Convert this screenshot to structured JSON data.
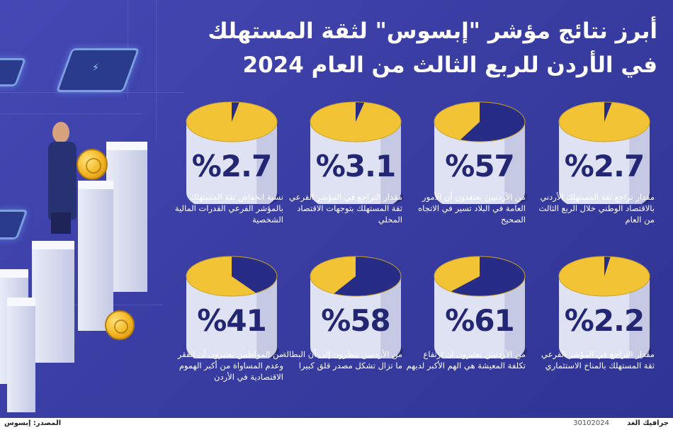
{
  "title": {
    "line1": "أبرز نتائج مؤشر \"إبسوس\" لثقة المستهلك",
    "line2": "في الأردن للربع الثالث من العام 2024"
  },
  "colors": {
    "background": "#3b3fa6",
    "pie_navy": "#272c86",
    "pie_gold": "#f2c335",
    "cylinder_body": "#dfe2f2",
    "percent_text": "#232773"
  },
  "stats": [
    {
      "value": "%2.7",
      "fraction": 0.027,
      "desc": "مقدار تراجع ثقة المستهلك الأردني بالاقتصاد الوطني خلال الربع الثالث من العام"
    },
    {
      "value": "%57",
      "fraction": 0.57,
      "desc": "من الأردنيين يعتقدون أن الأمور العامة في البلاد تسير في الاتجاه الصحيح"
    },
    {
      "value": "%3.1",
      "fraction": 0.031,
      "desc": "مقدار التراجع في المؤشر الفرعي ثقة المستهلك بتوجهات الاقتصاد المحلي"
    },
    {
      "value": "%2.7",
      "fraction": 0.027,
      "desc": "نسبة انخفاض ثقة المستهلك بالمؤشر الفرعي القدرات المالية الشخصية"
    },
    {
      "value": "%2.2",
      "fraction": 0.022,
      "desc": "مقدار التراجع في المؤشر الفرعي ثقة المستهلك بالمناخ الاستثماري"
    },
    {
      "value": "%61",
      "fraction": 0.61,
      "desc": "من الأردنيين يعتبرون ان ارتفاع تكلفة المعيشة هي الهم الأكبر لديهم"
    },
    {
      "value": "%58",
      "fraction": 0.58,
      "desc": "من الأردنيين ينظرون إلى أن البطالة ما تزال تشكل مصدر قلق كبيرا"
    },
    {
      "value": "%41",
      "fraction": 0.41,
      "desc": "من المواطنين يعتبرون أن الفقر وعدم المساواة من أكبر الهموم الاقتصادية في الأردن"
    }
  ],
  "footer": {
    "brand": "جرافيك الغد",
    "date": "30102024",
    "source": "المصدر: إبسوس"
  },
  "illustration": {
    "person_icon": "businessman-illustration",
    "coin_icon": "gold-coin-icon",
    "chip_icon": "microchip-icon",
    "bars_icon": "bar-blocks-illustration"
  }
}
